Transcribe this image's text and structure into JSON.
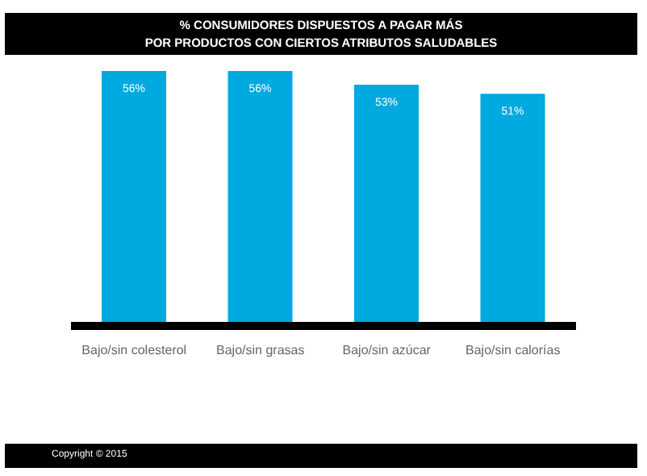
{
  "chart_data": {
    "type": "bar",
    "title": "% CONSUMIDORES DISPUESTOS A PAGAR MÁS\nPOR PRODUCTOS CON CIERTOS ATRIBUTOS SALUDABLES",
    "categories": [
      "Bajo/sin colesterol",
      "Bajo/sin grasas",
      "Bajo/sin azúcar",
      "Bajo/sin calorías"
    ],
    "values": [
      56,
      56,
      53,
      51
    ],
    "value_labels": [
      "56%",
      "56%",
      "53%",
      "51%"
    ],
    "color": "#00a9e0",
    "tick_labels": "x",
    "annotations": [
      "Copyright © 2015"
    ]
  }
}
